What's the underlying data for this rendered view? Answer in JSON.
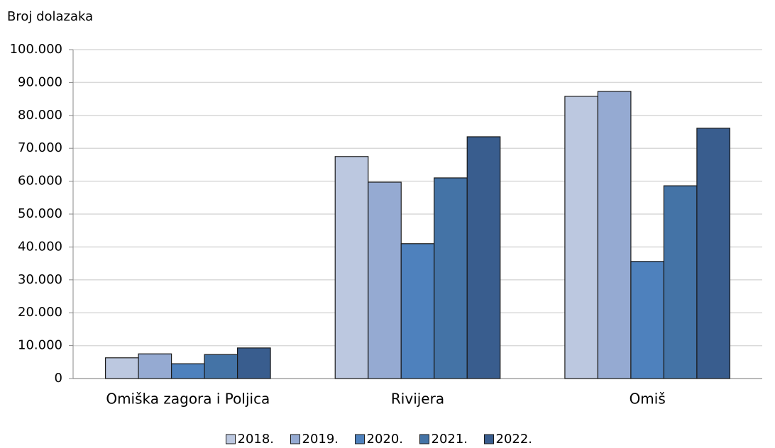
{
  "chart_data": {
    "type": "bar",
    "y_label": "Broj dolazaka",
    "categories": [
      "Omiška zagora i Poljica",
      "Rivijera",
      "Omiš"
    ],
    "series": [
      {
        "name": "2018.",
        "color": "#bcc8e0",
        "values": [
          6300,
          67500,
          85800
        ]
      },
      {
        "name": "2019.",
        "color": "#95aad2",
        "values": [
          7500,
          59700,
          87300
        ]
      },
      {
        "name": "2020.",
        "color": "#4e81bd",
        "values": [
          4500,
          41000,
          35600
        ]
      },
      {
        "name": "2021.",
        "color": "#4473a6",
        "values": [
          7300,
          61000,
          58600
        ]
      },
      {
        "name": "2022.",
        "color": "#395d8e",
        "values": [
          9300,
          73500,
          76100
        ]
      }
    ],
    "ylim": [
      0,
      100000
    ],
    "yticks": [
      0,
      {
        "value": 10000,
        "label": "10.000"
      },
      {
        "value": 20000,
        "label": "20.000"
      },
      {
        "value": 30000,
        "label": "30.000"
      },
      {
        "value": 40000,
        "label": "40.000"
      },
      {
        "value": 50000,
        "label": "50.000"
      },
      {
        "value": 60000,
        "label": "60.000"
      },
      {
        "value": 70000,
        "label": "70.000"
      },
      {
        "value": 80000,
        "label": "80.000"
      },
      {
        "value": 90000,
        "label": "90.000"
      },
      {
        "value": 100000,
        "label": "100.000"
      }
    ],
    "grid": true,
    "legend": "bottom"
  }
}
